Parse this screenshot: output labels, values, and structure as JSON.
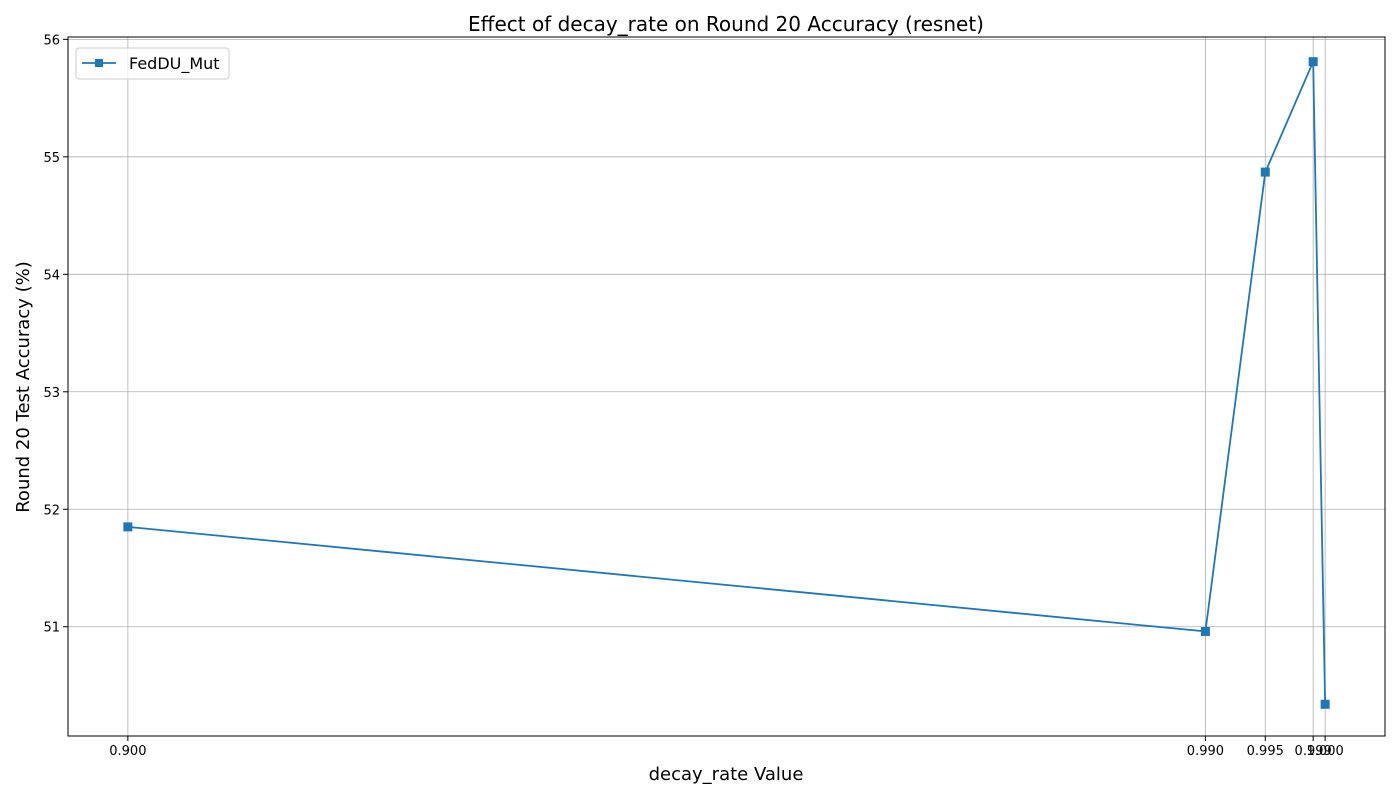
{
  "chart_data": {
    "type": "line",
    "title": "Effect of decay_rate on Round 20 Accuracy (resnet)",
    "xlabel": "decay_rate Value",
    "ylabel": "Round 20 Test Accuracy (%)",
    "x": [
      0.9,
      0.99,
      0.995,
      0.999,
      1.0
    ],
    "x_tick_labels": [
      "0.900",
      "0.990",
      "0.995",
      "0.999",
      "1.000"
    ],
    "y_ticks": [
      51,
      52,
      53,
      54,
      55,
      56
    ],
    "y_tick_labels": [
      "51",
      "52",
      "53",
      "54",
      "55",
      "56"
    ],
    "xlim": [
      0.895,
      1.005
    ],
    "ylim": [
      50.07,
      56.02
    ],
    "grid": true,
    "legend_position": "top-left",
    "series": [
      {
        "name": "FedDU_Mut",
        "color": "#1f77b4",
        "marker": "square",
        "values": [
          51.85,
          50.96,
          54.87,
          55.81,
          50.34
        ]
      }
    ]
  }
}
